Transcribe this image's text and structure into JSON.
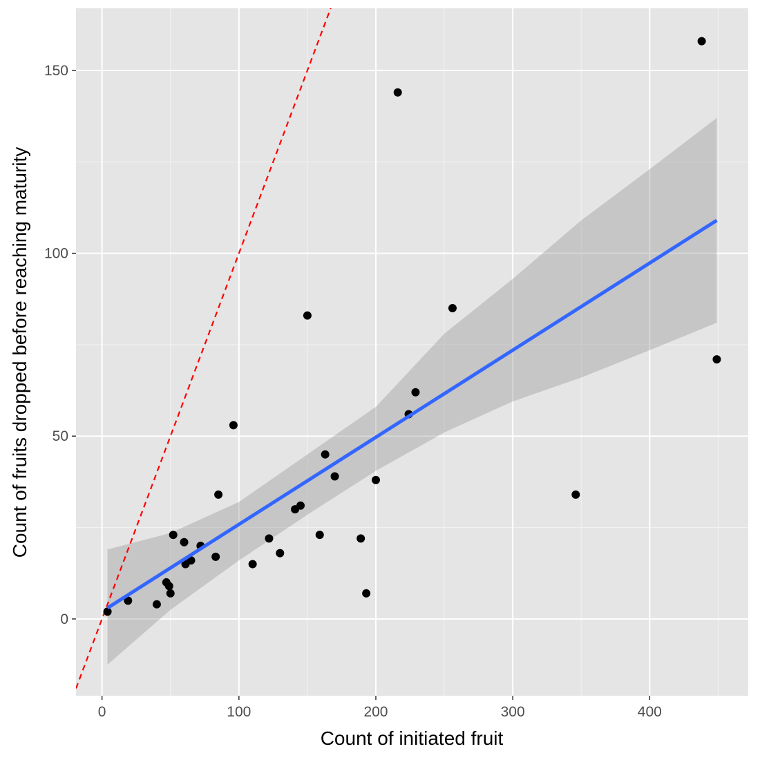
{
  "chart_data": {
    "type": "scatter",
    "title": "",
    "xlabel": "Count of initiated fruit",
    "ylabel": "Count of fruits dropped before reaching maturity",
    "xlim": [
      -19,
      472
    ],
    "ylim": [
      -21,
      167
    ],
    "x_ticks": [
      0,
      100,
      200,
      300,
      400
    ],
    "y_ticks": [
      0,
      50,
      100,
      150
    ],
    "x_tick_labels": [
      "0",
      "100",
      "200",
      "300",
      "400"
    ],
    "y_tick_labels": [
      "0",
      "50",
      "100",
      "150"
    ],
    "grid": true,
    "legend": "none",
    "series": [
      {
        "kind": "points",
        "color": "#000000",
        "points": [
          {
            "x": 4,
            "y": 2
          },
          {
            "x": 19,
            "y": 5
          },
          {
            "x": 40,
            "y": 4
          },
          {
            "x": 47,
            "y": 10
          },
          {
            "x": 49,
            "y": 9
          },
          {
            "x": 50,
            "y": 7
          },
          {
            "x": 52,
            "y": 23
          },
          {
            "x": 60,
            "y": 21
          },
          {
            "x": 61,
            "y": 15
          },
          {
            "x": 65,
            "y": 16
          },
          {
            "x": 72,
            "y": 20
          },
          {
            "x": 83,
            "y": 17
          },
          {
            "x": 85,
            "y": 34
          },
          {
            "x": 96,
            "y": 53
          },
          {
            "x": 110,
            "y": 15
          },
          {
            "x": 122,
            "y": 22
          },
          {
            "x": 130,
            "y": 18
          },
          {
            "x": 141,
            "y": 30
          },
          {
            "x": 145,
            "y": 31
          },
          {
            "x": 150,
            "y": 83
          },
          {
            "x": 159,
            "y": 23
          },
          {
            "x": 163,
            "y": 45
          },
          {
            "x": 170,
            "y": 39
          },
          {
            "x": 189,
            "y": 22
          },
          {
            "x": 193,
            "y": 7
          },
          {
            "x": 200,
            "y": 38
          },
          {
            "x": 216,
            "y": 144
          },
          {
            "x": 224,
            "y": 56
          },
          {
            "x": 229,
            "y": 62
          },
          {
            "x": 256,
            "y": 85
          },
          {
            "x": 346,
            "y": 34
          },
          {
            "x": 438,
            "y": 158
          },
          {
            "x": 449,
            "y": 71
          }
        ]
      },
      {
        "kind": "fit-line",
        "color": "#3366ff",
        "x": [
          4,
          449
        ],
        "y": [
          3,
          109
        ]
      },
      {
        "kind": "confidence-band",
        "color": "#999999",
        "x": [
          4,
          50,
          100,
          150,
          200,
          250,
          300,
          350,
          400,
          449
        ],
        "lower": [
          -12.5,
          2.5,
          16,
          28.5,
          40.5,
          51,
          59.5,
          66,
          73.5,
          81
        ],
        "upper": [
          19,
          23.5,
          32,
          45,
          58,
          78,
          93,
          109,
          123,
          137
        ]
      },
      {
        "kind": "reference-line",
        "color": "#ff0000",
        "dashed": true,
        "slope": 1,
        "intercept": 0
      }
    ]
  }
}
